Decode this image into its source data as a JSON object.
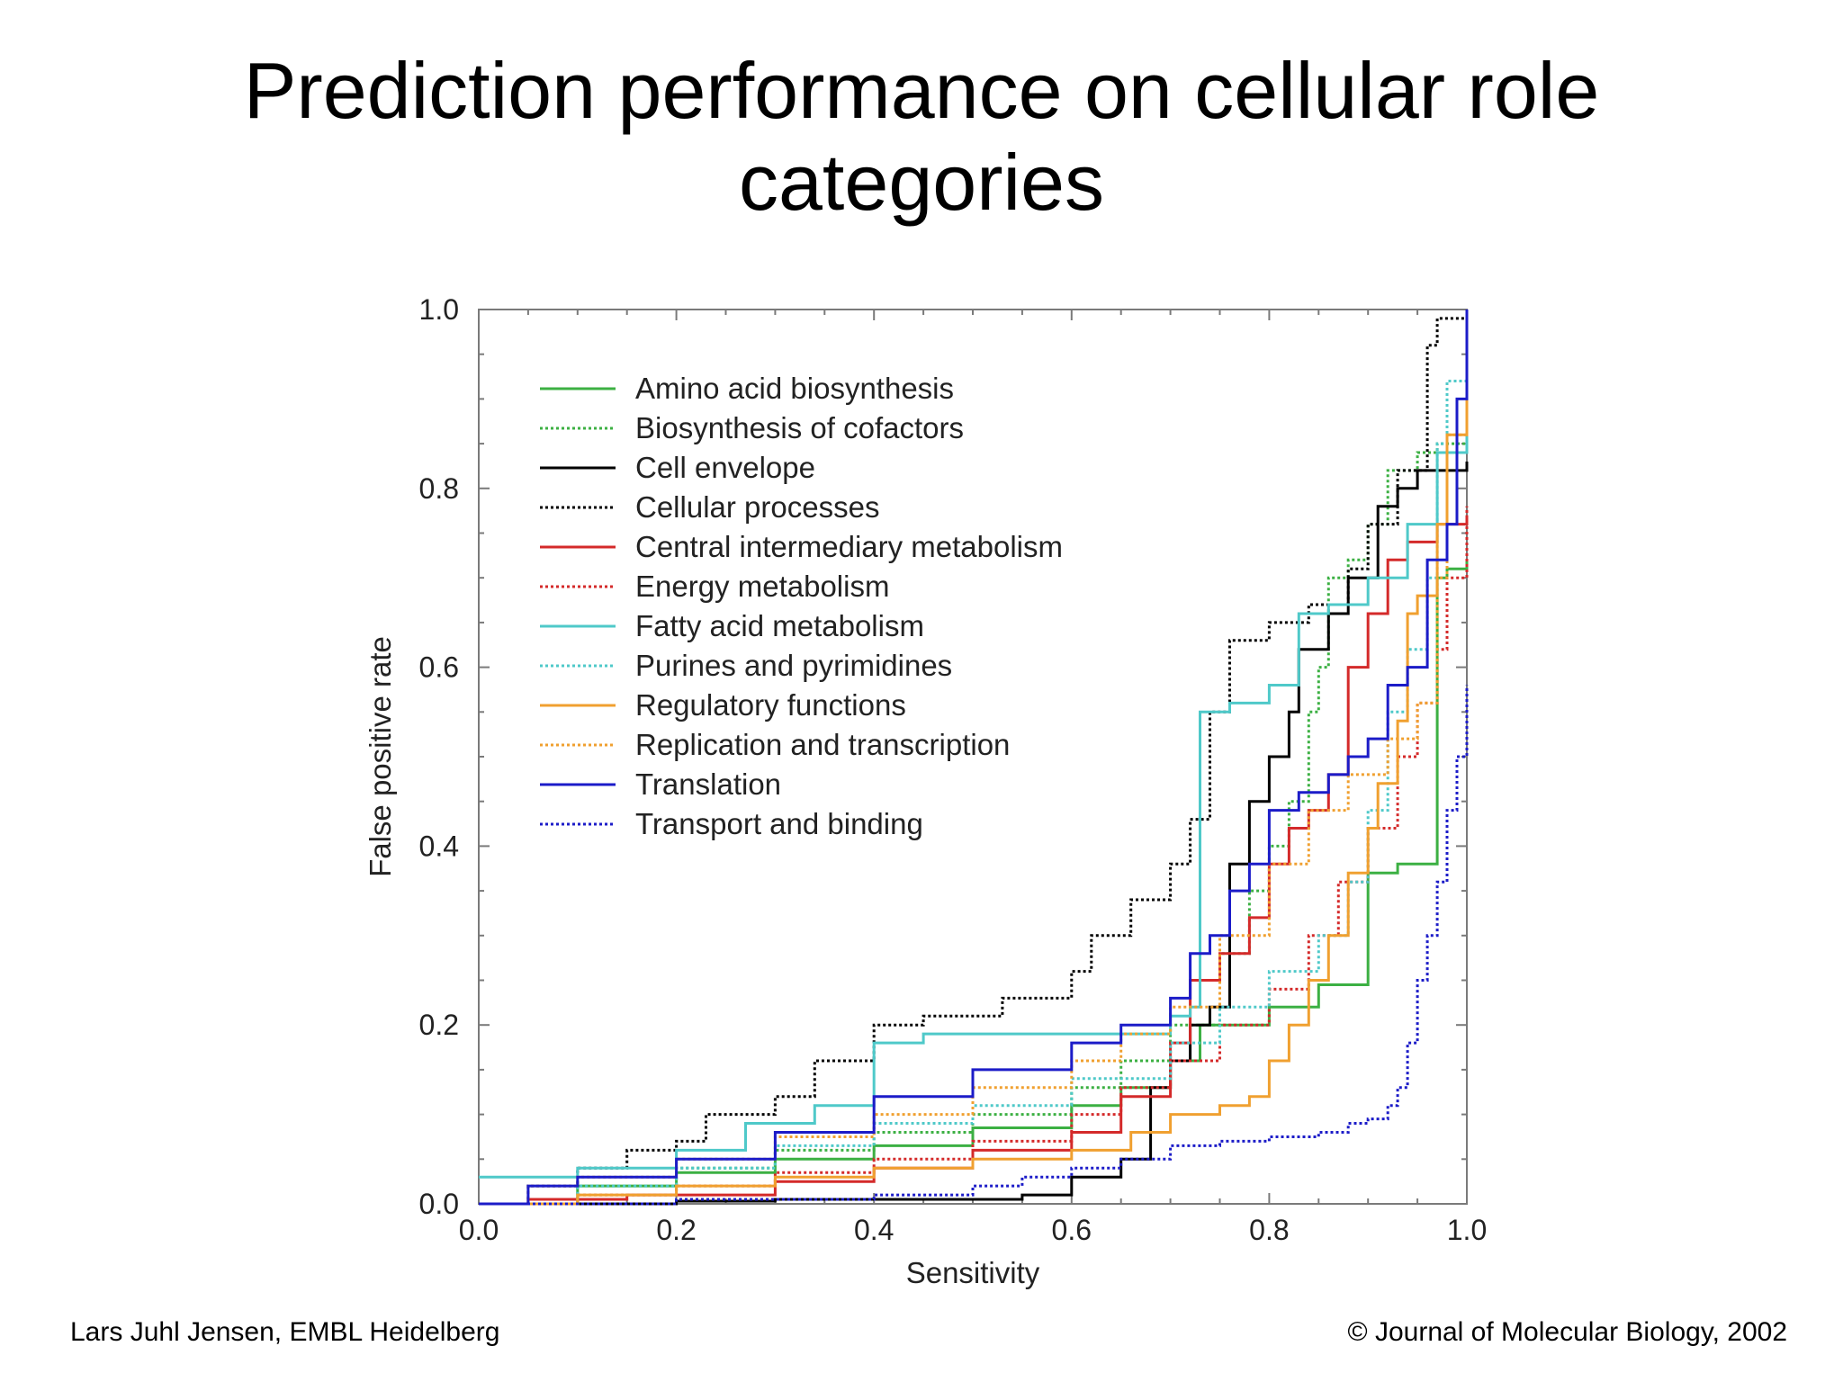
{
  "slide": {
    "title_line1": "Prediction performance on cellular role",
    "title_line2": "categories",
    "footer_left": "Lars Juhl Jensen, EMBL Heidelberg",
    "footer_right": "© Journal of Molecular Biology, 2002"
  },
  "chart_data": {
    "type": "line",
    "title": "",
    "xlabel": "Sensitivity",
    "ylabel": "False positive rate",
    "xlim": [
      0,
      1
    ],
    "ylim": [
      0,
      1
    ],
    "xticks": [
      "0.0",
      "0.2",
      "0.4",
      "0.6",
      "0.8",
      "1.0"
    ],
    "yticks": [
      "0.0",
      "0.2",
      "0.4",
      "0.6",
      "0.8",
      "1.0"
    ],
    "grid": false,
    "legend_position": "top-left",
    "series": [
      {
        "name": "Amino acid biosynthesis",
        "color": "#3cb043",
        "dash": "solid",
        "points": [
          [
            0,
            0
          ],
          [
            0.1,
            0.02
          ],
          [
            0.2,
            0.035
          ],
          [
            0.3,
            0.05
          ],
          [
            0.4,
            0.065
          ],
          [
            0.5,
            0.085
          ],
          [
            0.6,
            0.11
          ],
          [
            0.65,
            0.13
          ],
          [
            0.7,
            0.16
          ],
          [
            0.73,
            0.2
          ],
          [
            0.8,
            0.22
          ],
          [
            0.85,
            0.245
          ],
          [
            0.9,
            0.25
          ],
          [
            0.9,
            0.37
          ],
          [
            0.93,
            0.38
          ],
          [
            0.97,
            0.38
          ],
          [
            0.97,
            0.7
          ],
          [
            0.98,
            0.71
          ],
          [
            1,
            0.72
          ]
        ]
      },
      {
        "name": "Biosynthesis of cofactors",
        "color": "#3cb043",
        "dash": "dotted",
        "points": [
          [
            0,
            0
          ],
          [
            0.1,
            0.02
          ],
          [
            0.2,
            0.04
          ],
          [
            0.3,
            0.06
          ],
          [
            0.4,
            0.08
          ],
          [
            0.5,
            0.1
          ],
          [
            0.6,
            0.13
          ],
          [
            0.65,
            0.16
          ],
          [
            0.7,
            0.2
          ],
          [
            0.75,
            0.28
          ],
          [
            0.78,
            0.35
          ],
          [
            0.8,
            0.4
          ],
          [
            0.82,
            0.45
          ],
          [
            0.84,
            0.55
          ],
          [
            0.85,
            0.6
          ],
          [
            0.86,
            0.7
          ],
          [
            0.88,
            0.72
          ],
          [
            0.9,
            0.76
          ],
          [
            0.92,
            0.82
          ],
          [
            0.95,
            0.84
          ],
          [
            0.97,
            0.85
          ],
          [
            1,
            0.86
          ]
        ]
      },
      {
        "name": "Cell envelope",
        "color": "#000000",
        "dash": "solid",
        "points": [
          [
            0,
            0
          ],
          [
            0.2,
            0.003
          ],
          [
            0.3,
            0.005
          ],
          [
            0.4,
            0.005
          ],
          [
            0.55,
            0.01
          ],
          [
            0.6,
            0.03
          ],
          [
            0.65,
            0.05
          ],
          [
            0.68,
            0.06
          ],
          [
            0.68,
            0.13
          ],
          [
            0.7,
            0.16
          ],
          [
            0.72,
            0.2
          ],
          [
            0.74,
            0.22
          ],
          [
            0.76,
            0.38
          ],
          [
            0.78,
            0.45
          ],
          [
            0.8,
            0.5
          ],
          [
            0.82,
            0.55
          ],
          [
            0.83,
            0.62
          ],
          [
            0.86,
            0.66
          ],
          [
            0.88,
            0.7
          ],
          [
            0.91,
            0.78
          ],
          [
            0.93,
            0.8
          ],
          [
            0.95,
            0.82
          ],
          [
            0.97,
            0.82
          ],
          [
            1,
            0.83
          ]
        ]
      },
      {
        "name": "Cellular processes",
        "color": "#000000",
        "dash": "dotted",
        "points": [
          [
            0,
            0
          ],
          [
            0.05,
            0.02
          ],
          [
            0.1,
            0.04
          ],
          [
            0.15,
            0.06
          ],
          [
            0.2,
            0.07
          ],
          [
            0.23,
            0.1
          ],
          [
            0.3,
            0.12
          ],
          [
            0.34,
            0.16
          ],
          [
            0.4,
            0.2
          ],
          [
            0.45,
            0.21
          ],
          [
            0.53,
            0.23
          ],
          [
            0.6,
            0.26
          ],
          [
            0.62,
            0.3
          ],
          [
            0.66,
            0.34
          ],
          [
            0.7,
            0.38
          ],
          [
            0.72,
            0.43
          ],
          [
            0.74,
            0.55
          ],
          [
            0.76,
            0.63
          ],
          [
            0.8,
            0.65
          ],
          [
            0.84,
            0.67
          ],
          [
            0.88,
            0.71
          ],
          [
            0.9,
            0.76
          ],
          [
            0.93,
            0.82
          ],
          [
            0.96,
            0.96
          ],
          [
            0.97,
            0.99
          ],
          [
            1,
            1.0
          ]
        ]
      },
      {
        "name": "Central intermediary metabolism",
        "color": "#d42a2a",
        "dash": "solid",
        "points": [
          [
            0,
            0
          ],
          [
            0.05,
            0.005
          ],
          [
            0.15,
            0.01
          ],
          [
            0.3,
            0.025
          ],
          [
            0.4,
            0.04
          ],
          [
            0.5,
            0.06
          ],
          [
            0.6,
            0.08
          ],
          [
            0.65,
            0.12
          ],
          [
            0.7,
            0.18
          ],
          [
            0.72,
            0.25
          ],
          [
            0.75,
            0.28
          ],
          [
            0.78,
            0.32
          ],
          [
            0.8,
            0.38
          ],
          [
            0.82,
            0.42
          ],
          [
            0.84,
            0.44
          ],
          [
            0.86,
            0.48
          ],
          [
            0.88,
            0.6
          ],
          [
            0.9,
            0.66
          ],
          [
            0.92,
            0.72
          ],
          [
            0.94,
            0.74
          ],
          [
            0.97,
            0.76
          ],
          [
            1,
            0.77
          ]
        ]
      },
      {
        "name": "Energy metabolism",
        "color": "#d42a2a",
        "dash": "dotted",
        "points": [
          [
            0,
            0
          ],
          [
            0.1,
            0.01
          ],
          [
            0.2,
            0.02
          ],
          [
            0.3,
            0.035
          ],
          [
            0.4,
            0.05
          ],
          [
            0.5,
            0.07
          ],
          [
            0.6,
            0.1
          ],
          [
            0.65,
            0.13
          ],
          [
            0.7,
            0.16
          ],
          [
            0.75,
            0.2
          ],
          [
            0.8,
            0.24
          ],
          [
            0.84,
            0.3
          ],
          [
            0.87,
            0.36
          ],
          [
            0.9,
            0.42
          ],
          [
            0.93,
            0.5
          ],
          [
            0.95,
            0.56
          ],
          [
            0.97,
            0.62
          ],
          [
            0.98,
            0.7
          ],
          [
            1,
            0.78
          ]
        ]
      },
      {
        "name": "Fatty acid metabolism",
        "color": "#4fc9c9",
        "dash": "solid",
        "points": [
          [
            0,
            0.03
          ],
          [
            0.05,
            0.03
          ],
          [
            0.1,
            0.04
          ],
          [
            0.2,
            0.06
          ],
          [
            0.27,
            0.09
          ],
          [
            0.34,
            0.11
          ],
          [
            0.4,
            0.12
          ],
          [
            0.4,
            0.18
          ],
          [
            0.45,
            0.19
          ],
          [
            0.6,
            0.19
          ],
          [
            0.7,
            0.21
          ],
          [
            0.72,
            0.22
          ],
          [
            0.73,
            0.55
          ],
          [
            0.76,
            0.56
          ],
          [
            0.8,
            0.58
          ],
          [
            0.83,
            0.66
          ],
          [
            0.86,
            0.67
          ],
          [
            0.9,
            0.7
          ],
          [
            0.94,
            0.76
          ],
          [
            0.97,
            0.84
          ],
          [
            1,
            0.86
          ]
        ]
      },
      {
        "name": "Purines and pyrimidines",
        "color": "#4fc9c9",
        "dash": "dotted",
        "points": [
          [
            0,
            0
          ],
          [
            0.1,
            0.02
          ],
          [
            0.2,
            0.04
          ],
          [
            0.3,
            0.065
          ],
          [
            0.4,
            0.09
          ],
          [
            0.5,
            0.11
          ],
          [
            0.6,
            0.14
          ],
          [
            0.7,
            0.18
          ],
          [
            0.75,
            0.22
          ],
          [
            0.8,
            0.26
          ],
          [
            0.85,
            0.3
          ],
          [
            0.88,
            0.36
          ],
          [
            0.9,
            0.44
          ],
          [
            0.92,
            0.55
          ],
          [
            0.94,
            0.62
          ],
          [
            0.96,
            0.7
          ],
          [
            0.97,
            0.85
          ],
          [
            0.98,
            0.92
          ],
          [
            1,
            0.93
          ]
        ]
      },
      {
        "name": "Regulatory functions",
        "color": "#f0a030",
        "dash": "solid",
        "points": [
          [
            0,
            0
          ],
          [
            0.1,
            0.01
          ],
          [
            0.2,
            0.02
          ],
          [
            0.3,
            0.03
          ],
          [
            0.4,
            0.04
          ],
          [
            0.5,
            0.05
          ],
          [
            0.6,
            0.06
          ],
          [
            0.66,
            0.08
          ],
          [
            0.7,
            0.1
          ],
          [
            0.75,
            0.11
          ],
          [
            0.78,
            0.12
          ],
          [
            0.8,
            0.16
          ],
          [
            0.82,
            0.2
          ],
          [
            0.84,
            0.25
          ],
          [
            0.86,
            0.3
          ],
          [
            0.88,
            0.37
          ],
          [
            0.9,
            0.42
          ],
          [
            0.91,
            0.47
          ],
          [
            0.93,
            0.54
          ],
          [
            0.94,
            0.66
          ],
          [
            0.95,
            0.68
          ],
          [
            0.97,
            0.76
          ],
          [
            0.98,
            0.86
          ],
          [
            1,
            0.9
          ]
        ]
      },
      {
        "name": "Replication and transcription",
        "color": "#f0a030",
        "dash": "dotted",
        "points": [
          [
            0,
            0
          ],
          [
            0.05,
            0.02
          ],
          [
            0.1,
            0.03
          ],
          [
            0.2,
            0.05
          ],
          [
            0.3,
            0.075
          ],
          [
            0.4,
            0.1
          ],
          [
            0.5,
            0.13
          ],
          [
            0.6,
            0.16
          ],
          [
            0.65,
            0.19
          ],
          [
            0.7,
            0.22
          ],
          [
            0.75,
            0.3
          ],
          [
            0.8,
            0.38
          ],
          [
            0.84,
            0.44
          ],
          [
            0.88,
            0.48
          ],
          [
            0.92,
            0.52
          ],
          [
            0.95,
            0.56
          ],
          [
            0.97,
            0.7
          ],
          [
            0.98,
            0.86
          ],
          [
            1,
            0.88
          ]
        ]
      },
      {
        "name": "Translation",
        "color": "#1c1cc8",
        "dash": "solid",
        "points": [
          [
            0,
            0
          ],
          [
            0.05,
            0.02
          ],
          [
            0.1,
            0.03
          ],
          [
            0.2,
            0.05
          ],
          [
            0.3,
            0.08
          ],
          [
            0.4,
            0.12
          ],
          [
            0.5,
            0.15
          ],
          [
            0.6,
            0.18
          ],
          [
            0.65,
            0.2
          ],
          [
            0.7,
            0.23
          ],
          [
            0.72,
            0.28
          ],
          [
            0.74,
            0.3
          ],
          [
            0.76,
            0.35
          ],
          [
            0.78,
            0.38
          ],
          [
            0.8,
            0.44
          ],
          [
            0.83,
            0.46
          ],
          [
            0.86,
            0.48
          ],
          [
            0.88,
            0.5
          ],
          [
            0.9,
            0.52
          ],
          [
            0.92,
            0.58
          ],
          [
            0.94,
            0.6
          ],
          [
            0.96,
            0.72
          ],
          [
            0.98,
            0.76
          ],
          [
            0.99,
            0.9
          ],
          [
            1,
            1.0
          ]
        ]
      },
      {
        "name": "Transport and binding",
        "color": "#1c1cc8",
        "dash": "dotted",
        "points": [
          [
            0,
            0
          ],
          [
            0.2,
            0.005
          ],
          [
            0.4,
            0.01
          ],
          [
            0.5,
            0.02
          ],
          [
            0.55,
            0.03
          ],
          [
            0.6,
            0.04
          ],
          [
            0.65,
            0.05
          ],
          [
            0.7,
            0.065
          ],
          [
            0.75,
            0.07
          ],
          [
            0.8,
            0.075
          ],
          [
            0.85,
            0.08
          ],
          [
            0.88,
            0.09
          ],
          [
            0.9,
            0.095
          ],
          [
            0.92,
            0.11
          ],
          [
            0.93,
            0.13
          ],
          [
            0.94,
            0.18
          ],
          [
            0.95,
            0.25
          ],
          [
            0.96,
            0.3
          ],
          [
            0.97,
            0.36
          ],
          [
            0.98,
            0.44
          ],
          [
            0.99,
            0.5
          ],
          [
            1,
            0.58
          ]
        ]
      }
    ]
  }
}
